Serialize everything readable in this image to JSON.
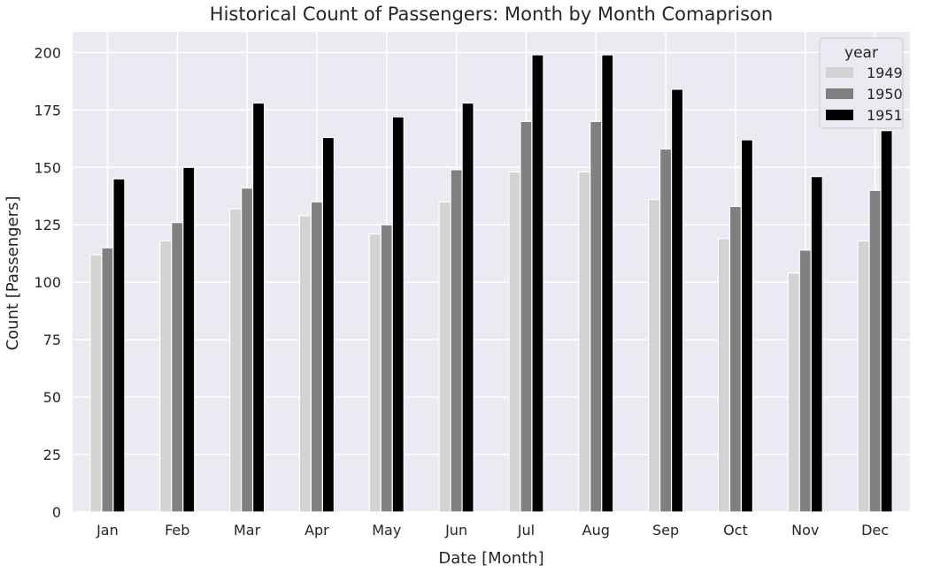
{
  "chart_data": {
    "type": "bar",
    "title": "Historical Count of Passengers: Month by Month Comaprison",
    "xlabel": "Date [Month]",
    "ylabel": "Count [Passengers]",
    "categories": [
      "Jan",
      "Feb",
      "Mar",
      "Apr",
      "May",
      "Jun",
      "Jul",
      "Aug",
      "Sep",
      "Oct",
      "Nov",
      "Dec"
    ],
    "series": [
      {
        "name": "1949",
        "color": "#d3d3d3",
        "values": [
          112,
          118,
          132,
          129,
          121,
          135,
          148,
          148,
          136,
          119,
          104,
          118
        ]
      },
      {
        "name": "1950",
        "color": "#808080",
        "values": [
          115,
          126,
          141,
          135,
          125,
          149,
          170,
          170,
          158,
          133,
          114,
          140
        ]
      },
      {
        "name": "1951",
        "color": "#000000",
        "values": [
          145,
          150,
          178,
          163,
          172,
          178,
          199,
          199,
          184,
          162,
          146,
          166
        ]
      }
    ],
    "ylim": [
      0,
      209
    ],
    "yticks": [
      0,
      25,
      50,
      75,
      100,
      125,
      150,
      175,
      200
    ],
    "grid": true,
    "background": "#eaeaf2",
    "legend": {
      "title": "year",
      "placement": "top-right"
    }
  }
}
